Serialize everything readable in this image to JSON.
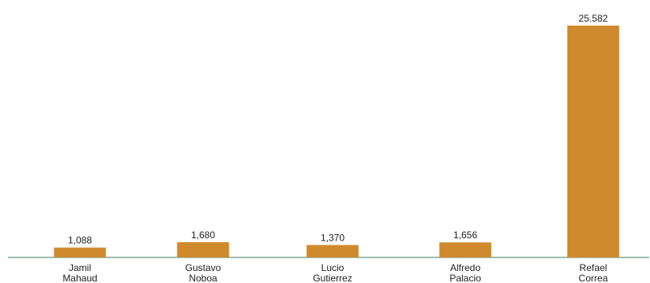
{
  "chart_data": {
    "type": "bar",
    "categories": [
      [
        "Jamil",
        "Mahaud"
      ],
      [
        "Gustavo",
        "Noboa"
      ],
      [
        "Lucio",
        "Gutierrez"
      ],
      [
        "Alfredo",
        "Palacio"
      ],
      [
        "Refael",
        "Correa"
      ]
    ],
    "values": [
      1.088,
      1.68,
      1.37,
      1.656,
      25.582
    ],
    "value_labels": [
      "1,088",
      "1,680",
      "1,370",
      "1,656",
      "25.582"
    ],
    "title": "",
    "xlabel": "",
    "ylabel": "",
    "ylim": [
      0,
      25.582
    ],
    "grid": false,
    "legend": "none",
    "colors": {
      "bar": "#CF8A2E",
      "axis": "#3E7D5E",
      "text": "#222222"
    }
  }
}
